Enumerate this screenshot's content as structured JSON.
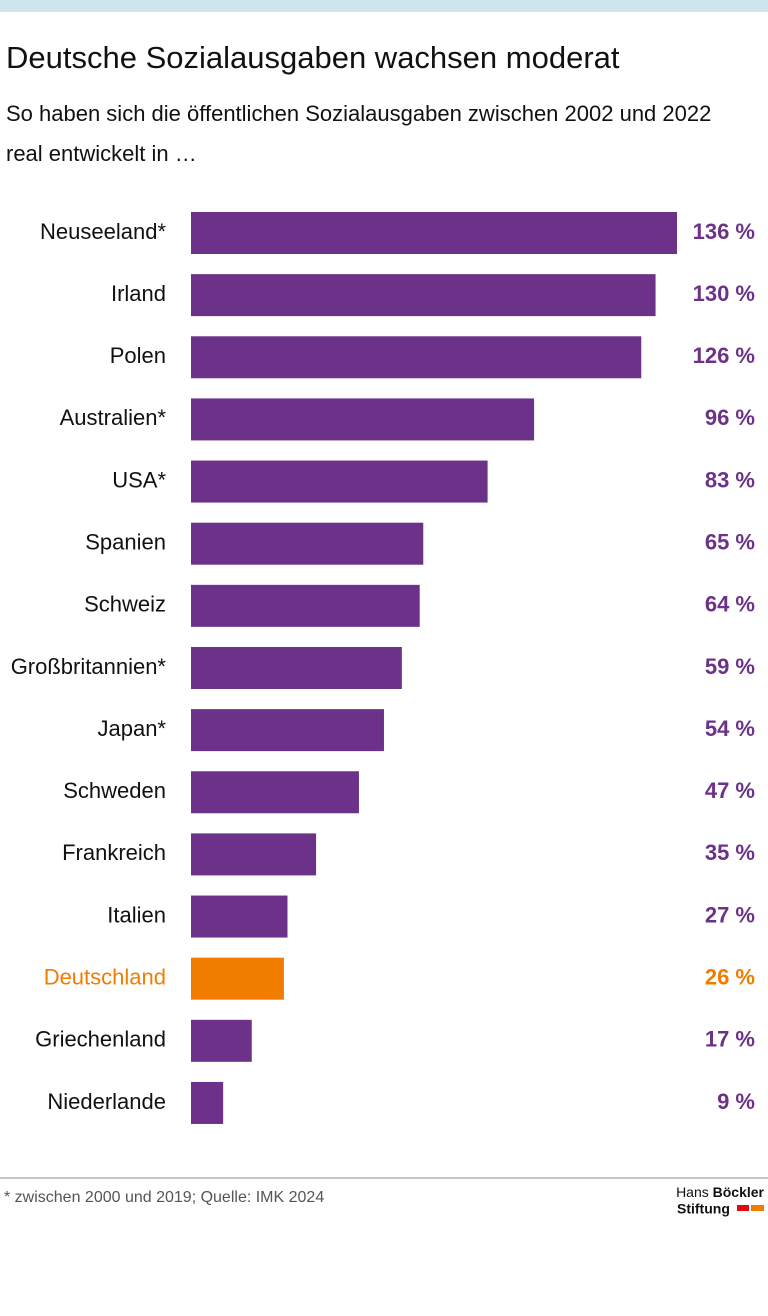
{
  "chart_data": {
    "type": "bar",
    "orientation": "horizontal",
    "title": "Deutsche Sozialausgaben wachsen moderat",
    "subtitle": "So haben sich die öffentlichen Sozialausgaben zwischen 2002 und 2022 real entwickelt in …",
    "categories": [
      "Neuseeland*",
      "Irland",
      "Polen",
      "Australien*",
      "USA*",
      "Spanien",
      "Schweiz",
      "Großbritannien*",
      "Japan*",
      "Schweden",
      "Frankreich",
      "Italien",
      "Deutschland",
      "Griechenland",
      "Niederlande"
    ],
    "values": [
      136,
      130,
      126,
      96,
      83,
      65,
      64,
      59,
      54,
      47,
      35,
      27,
      26,
      17,
      9
    ],
    "value_labels": [
      "136 %",
      "130 %",
      "126 %",
      "96 %",
      "83 %",
      "65 %",
      "64 %",
      "59 %",
      "54 %",
      "47 %",
      "35 %",
      "27 %",
      "26 %",
      "17 %",
      "9 %"
    ],
    "colors": [
      "#6c3289",
      "#6c3289",
      "#6c3289",
      "#6c3289",
      "#6c3289",
      "#6c3289",
      "#6c3289",
      "#6c3289",
      "#6c3289",
      "#6c3289",
      "#6c3289",
      "#6c3289",
      "#f07d00",
      "#6c3289",
      "#6c3289"
    ],
    "footnote": "* zwischen 2000 und 2019; Quelle: IMK 2024"
  },
  "logo": {
    "first": "Hans",
    "second": "Böckler",
    "third": "Stiftung"
  }
}
